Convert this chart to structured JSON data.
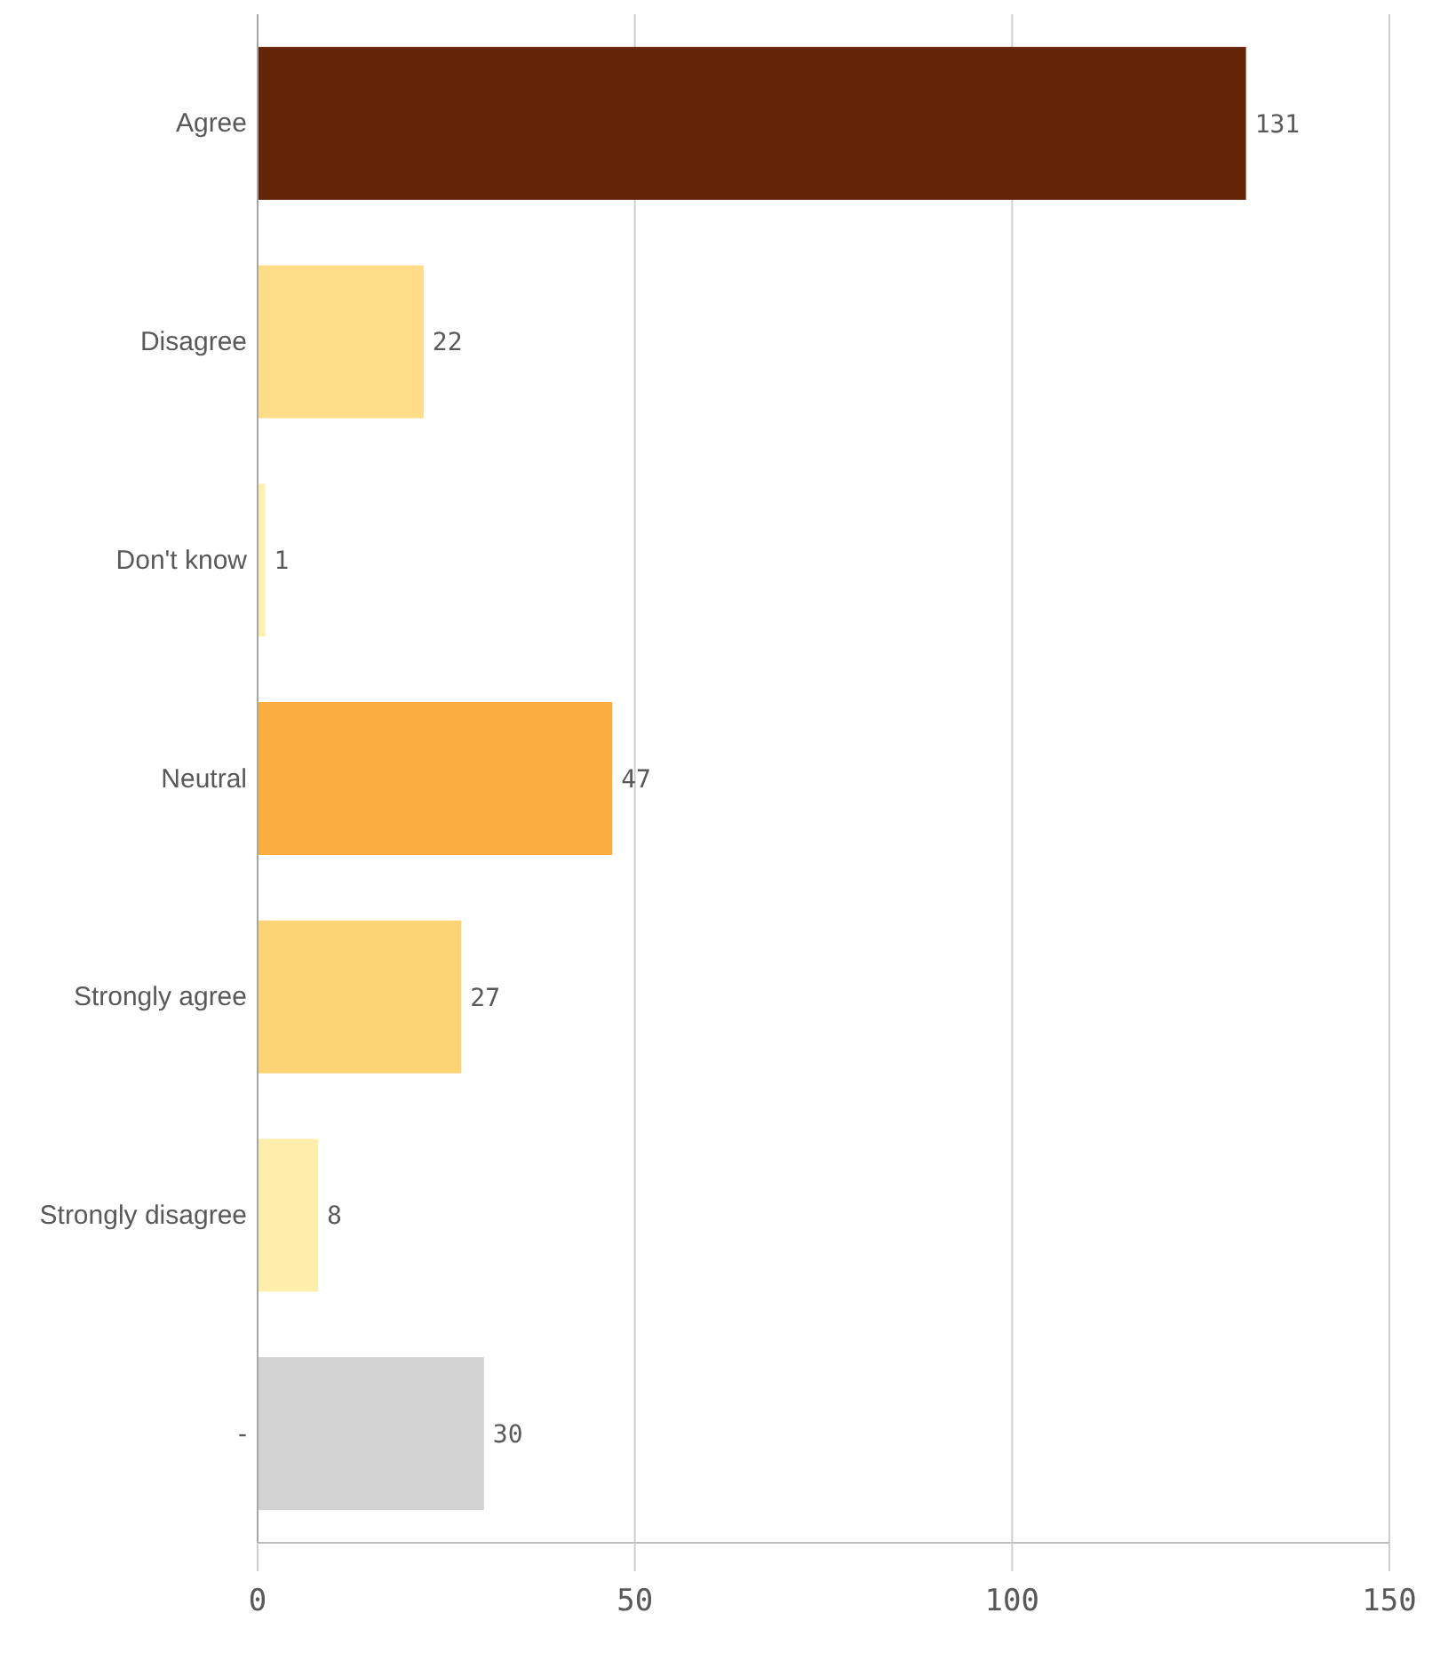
{
  "chart_data": {
    "type": "bar",
    "orientation": "horizontal",
    "categories": [
      "Agree",
      "Disagree",
      "Don't know",
      "Neutral",
      "Strongly agree",
      "Strongly disagree",
      "-"
    ],
    "values": [
      131,
      22,
      1,
      47,
      27,
      8,
      30
    ],
    "colors": [
      "#652508",
      "#fedc88",
      "#fff0b0",
      "#fbad40",
      "#fdd475",
      "#feeeab",
      "#d2d2d2"
    ],
    "xlim": [
      0,
      150
    ],
    "xticks": [
      0,
      50,
      100,
      150
    ],
    "grid": "x",
    "data_labels": true
  }
}
